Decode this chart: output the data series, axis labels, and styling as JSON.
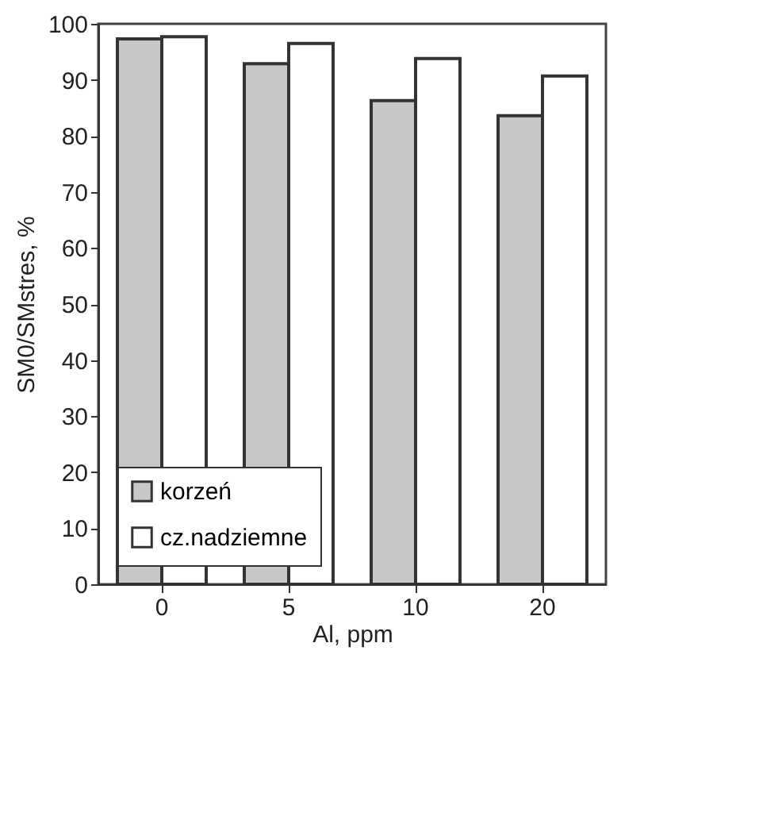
{
  "chart_data": {
    "type": "bar",
    "xlabel": "Al, ppm",
    "ylabel": "SM0/SMstres, %",
    "categories": [
      "0",
      "5",
      "10",
      "20"
    ],
    "series": [
      {
        "name": "korzeń",
        "color": "#c8c8c8",
        "values": [
          97.3,
          92.9,
          86.3,
          83.6
        ]
      },
      {
        "name": "cz.nadziemne",
        "color": "#ffffff",
        "values": [
          97.7,
          96.5,
          93.8,
          90.7
        ]
      }
    ],
    "ylim": [
      0,
      100
    ],
    "yticks": [
      0,
      10,
      20,
      30,
      40,
      50,
      60,
      70,
      80,
      90,
      100
    ],
    "grid": false,
    "legend": "bottom left"
  }
}
